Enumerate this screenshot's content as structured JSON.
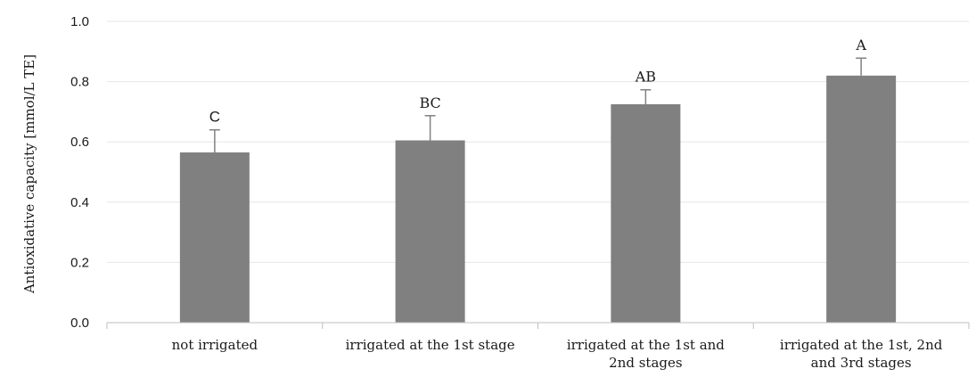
{
  "chart_data": {
    "type": "bar",
    "categories": [
      [
        "not irrigated"
      ],
      [
        "irrigated at the 1st stage"
      ],
      [
        "irrigated at the 1st and",
        "2nd stages"
      ],
      [
        "irrigated at the 1st, 2nd",
        "and 3rd stages"
      ]
    ],
    "values": [
      0.565,
      0.605,
      0.725,
      0.82
    ],
    "error_upper": [
      0.64,
      0.687,
      0.773,
      0.878
    ],
    "significance_letters": [
      "C",
      "BC",
      "AB",
      "A"
    ],
    "ylabel": "Antioxidative capacity [mmol/L TE]",
    "xlabel": "",
    "title": "",
    "ylim": [
      0,
      1.0
    ],
    "yticks": [
      "0.0",
      "0.2",
      "0.4",
      "0.6",
      "0.8",
      "1.0"
    ],
    "grid": "horizontal",
    "colors": {
      "bar": "#808080",
      "grid": "#e6e6e6",
      "axis": "#bfbfbf",
      "error": "#808080"
    }
  }
}
